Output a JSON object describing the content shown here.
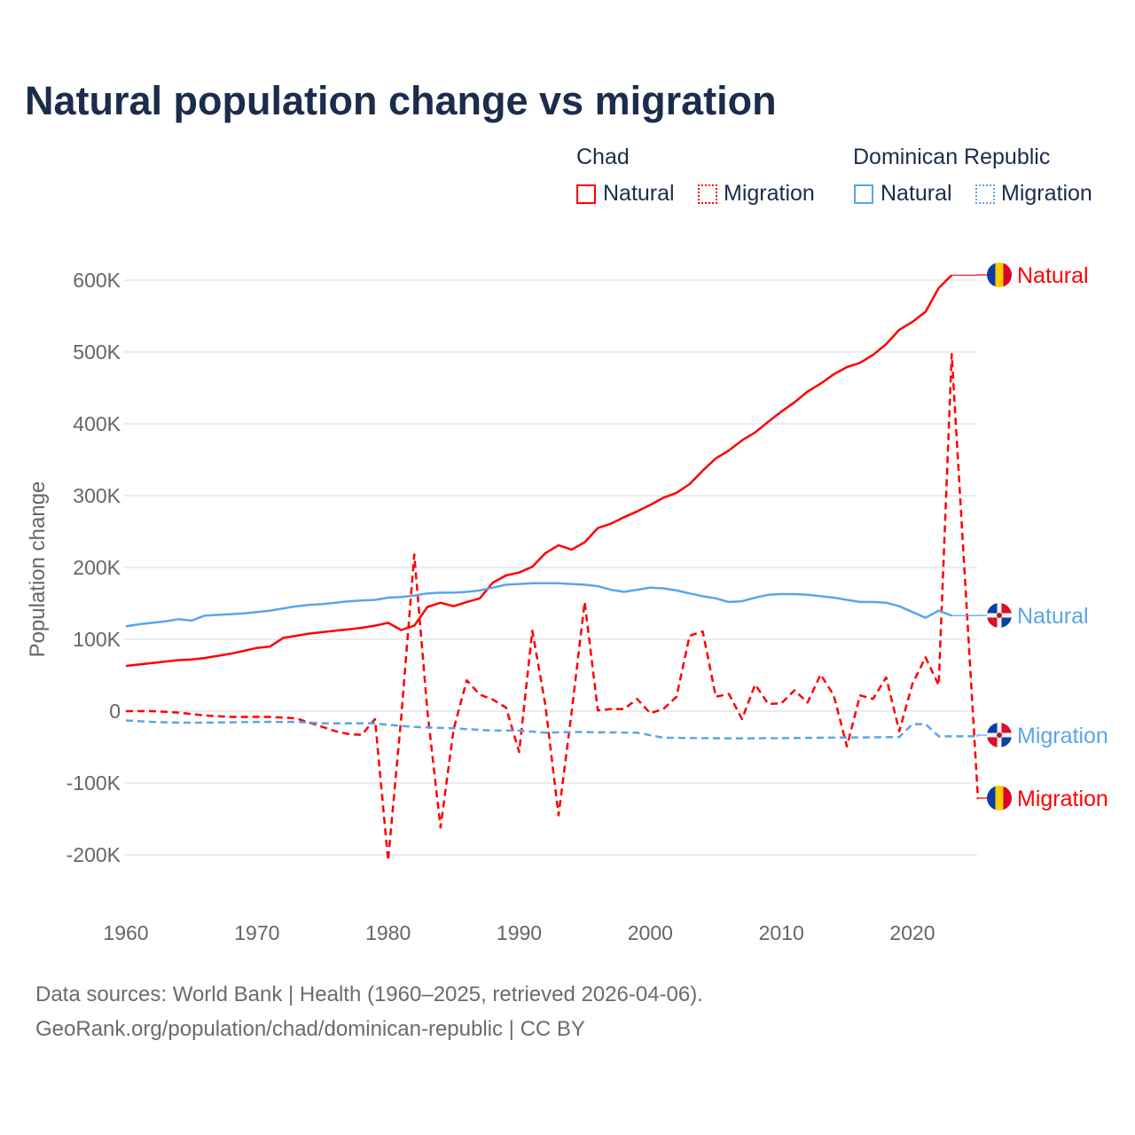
{
  "title": "Natural population change vs migration",
  "legend": {
    "groups": [
      {
        "country": "Chad",
        "items": [
          "Natural",
          "Migration"
        ]
      },
      {
        "country": "Dominican Republic",
        "items": [
          "Natural",
          "Migration"
        ]
      }
    ]
  },
  "footer": {
    "line1": "Data sources: World Bank | Health (1960–2025, retrieved 2026-04-06).",
    "line2": "GeoRank.org/population/chad/dominican-republic | CC BY"
  },
  "colors": {
    "chad": "#ff0000",
    "dominican_republic": "#5aa5ea"
  },
  "chart_data": {
    "type": "line",
    "title": "Natural population change vs migration",
    "xlabel": "",
    "ylabel": "Population change",
    "xlim": [
      1960,
      2025
    ],
    "ylim": [
      -200000,
      600000
    ],
    "xticks": [
      1960,
      1970,
      1980,
      1990,
      2000,
      2010,
      2020
    ],
    "xtick_labels": [
      "1960",
      "1970",
      "1980",
      "1990",
      "2000",
      "2010",
      "2020"
    ],
    "yticks": [
      -200000,
      -100000,
      0,
      100000,
      200000,
      300000,
      400000,
      500000,
      600000
    ],
    "ytick_labels": [
      "-200K",
      "-100K",
      "0",
      "100K",
      "200K",
      "300K",
      "400K",
      "500K",
      "600K"
    ],
    "grid": true,
    "legend_position": "top-right",
    "series": [
      {
        "name": "Chad Natural",
        "country": "Chad",
        "kind": "Natural",
        "style": "solid",
        "end_label": "Natural",
        "x": [
          1960,
          1961,
          1962,
          1963,
          1964,
          1965,
          1966,
          1967,
          1968,
          1969,
          1970,
          1971,
          1972,
          1973,
          1974,
          1975,
          1976,
          1977,
          1978,
          1979,
          1980,
          1981,
          1982,
          1983,
          1984,
          1985,
          1986,
          1987,
          1988,
          1989,
          1990,
          1991,
          1992,
          1993,
          1994,
          1995,
          1996,
          1997,
          1998,
          1999,
          2000,
          2001,
          2002,
          2003,
          2004,
          2005,
          2006,
          2007,
          2008,
          2009,
          2010,
          2011,
          2012,
          2013,
          2014,
          2015,
          2016,
          2017,
          2018,
          2019,
          2020,
          2021,
          2022,
          2023
        ],
        "values": [
          63000,
          65000,
          67000,
          69000,
          71000,
          72000,
          74000,
          77000,
          80000,
          84000,
          88000,
          90000,
          102000,
          105000,
          108000,
          110000,
          112000,
          114000,
          116000,
          119000,
          123000,
          113000,
          119000,
          145000,
          151000,
          146000,
          152000,
          157000,
          179000,
          189000,
          193000,
          201000,
          220000,
          231000,
          225000,
          235000,
          255000,
          261000,
          270000,
          278000,
          287000,
          297000,
          304000,
          316000,
          335000,
          352000,
          363000,
          377000,
          388000,
          403000,
          417000,
          430000,
          445000,
          456000,
          469000,
          479000,
          485000,
          496000,
          511000,
          531000,
          542000,
          556000,
          589000,
          607000
        ]
      },
      {
        "name": "Chad Migration",
        "country": "Chad",
        "kind": "Migration",
        "style": "dashed",
        "end_label": "Migration",
        "x": [
          1960,
          1961,
          1962,
          1963,
          1964,
          1965,
          1966,
          1967,
          1968,
          1969,
          1970,
          1971,
          1972,
          1973,
          1974,
          1975,
          1976,
          1977,
          1978,
          1979,
          1980,
          1981,
          1982,
          1983,
          1984,
          1985,
          1986,
          1987,
          1988,
          1989,
          1990,
          1991,
          1992,
          1993,
          1994,
          1995,
          1996,
          1997,
          1998,
          1999,
          2000,
          2001,
          2002,
          2003,
          2004,
          2005,
          2006,
          2007,
          2008,
          2009,
          2010,
          2011,
          2012,
          2013,
          2014,
          2015,
          2016,
          2017,
          2018,
          2019,
          2020,
          2021,
          2022,
          2023,
          2025
        ],
        "values": [
          0,
          0,
          0,
          -1000,
          -2000,
          -4000,
          -6000,
          -7000,
          -8000,
          -8000,
          -8000,
          -8000,
          -9000,
          -10000,
          -16000,
          -22000,
          -28000,
          -32000,
          -33000,
          -11000,
          -208000,
          -10000,
          218000,
          0,
          -162000,
          -25000,
          43000,
          23000,
          16000,
          5000,
          -57000,
          112000,
          8000,
          -145000,
          -2000,
          152000,
          1000,
          3000,
          3000,
          17000,
          -3000,
          3000,
          20000,
          105000,
          111000,
          20000,
          24000,
          -11000,
          37000,
          10000,
          11000,
          29000,
          12000,
          51000,
          22000,
          -49000,
          22000,
          17000,
          47000,
          -28000,
          38000,
          75000,
          36000,
          497000,
          -122000
        ]
      },
      {
        "name": "Dominican Republic Natural",
        "country": "Dominican Republic",
        "kind": "Natural",
        "style": "solid",
        "end_label": "Natural",
        "x": [
          1960,
          1961,
          1962,
          1963,
          1964,
          1965,
          1966,
          1967,
          1968,
          1969,
          1970,
          1971,
          1972,
          1973,
          1974,
          1975,
          1976,
          1977,
          1978,
          1979,
          1980,
          1981,
          1982,
          1983,
          1984,
          1985,
          1986,
          1987,
          1988,
          1989,
          1990,
          1991,
          1992,
          1993,
          1994,
          1995,
          1996,
          1997,
          1998,
          1999,
          2000,
          2001,
          2002,
          2003,
          2004,
          2005,
          2006,
          2007,
          2008,
          2009,
          2010,
          2011,
          2012,
          2013,
          2014,
          2015,
          2016,
          2017,
          2018,
          2019,
          2020,
          2021,
          2022,
          2023
        ],
        "values": [
          118000,
          121000,
          123000,
          125000,
          128000,
          126000,
          133000,
          134000,
          135000,
          136000,
          138000,
          140000,
          143000,
          146000,
          148000,
          149000,
          151000,
          153000,
          154000,
          155000,
          158000,
          159000,
          161000,
          164000,
          165000,
          165000,
          166000,
          168000,
          172000,
          176000,
          177000,
          178000,
          178000,
          178000,
          177000,
          176000,
          174000,
          169000,
          166000,
          169000,
          172000,
          171000,
          168000,
          164000,
          160000,
          157000,
          152000,
          153000,
          158000,
          162000,
          163000,
          163000,
          162000,
          160000,
          158000,
          155000,
          152000,
          152000,
          151000,
          146000,
          138000,
          130000,
          140000,
          133000
        ]
      },
      {
        "name": "Dominican Republic Migration",
        "country": "Dominican Republic",
        "kind": "Migration",
        "style": "dashed",
        "end_label": "Migration",
        "x": [
          1960,
          1962,
          1964,
          1966,
          1970,
          1973,
          1975,
          1979,
          1980,
          1982,
          1985,
          1988,
          1990,
          1992,
          1994,
          1999,
          2001,
          2007,
          2019,
          2020,
          2021,
          2022,
          2025
        ],
        "values": [
          -13000,
          -15000,
          -16000,
          -16000,
          -15000,
          -15000,
          -17000,
          -17000,
          -19000,
          -22000,
          -24000,
          -27000,
          -27000,
          -30000,
          -29000,
          -30000,
          -37000,
          -38000,
          -36000,
          -18000,
          -18000,
          -35000,
          -35000
        ]
      }
    ]
  }
}
